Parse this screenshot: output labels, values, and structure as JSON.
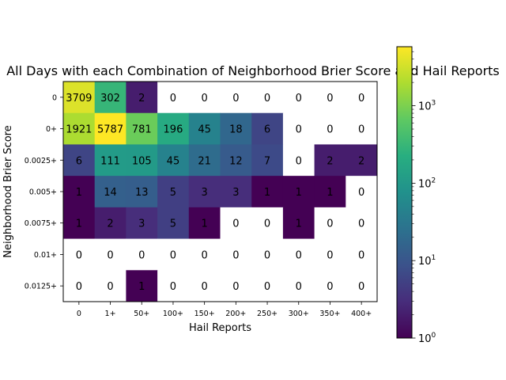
{
  "chart_data": {
    "type": "heatmap",
    "title": "All Days with each Combination of Neighborhood Brier Score and Hail Reports",
    "xlabel": "Hail Reports",
    "ylabel": "Neighborhood Brier Score",
    "x_categories": [
      "0",
      "1+",
      "50+",
      "100+",
      "150+",
      "200+",
      "250+",
      "300+",
      "350+",
      "400+"
    ],
    "y_categories": [
      "0",
      "0+",
      "0.0025+",
      "0.005+",
      "0.0075+",
      "0.01+",
      "0.0125+"
    ],
    "values": [
      [
        3709,
        302,
        2,
        0,
        0,
        0,
        0,
        0,
        0,
        0
      ],
      [
        1921,
        5787,
        781,
        196,
        45,
        18,
        6,
        0,
        0,
        0
      ],
      [
        6,
        111,
        105,
        45,
        21,
        12,
        7,
        0,
        2,
        2
      ],
      [
        1,
        14,
        13,
        5,
        3,
        3,
        1,
        1,
        1,
        0
      ],
      [
        1,
        2,
        3,
        5,
        1,
        0,
        0,
        1,
        0,
        0
      ],
      [
        0,
        0,
        0,
        0,
        0,
        0,
        0,
        0,
        0,
        0
      ],
      [
        0,
        0,
        1,
        0,
        0,
        0,
        0,
        0,
        0,
        0
      ]
    ],
    "colormap": "viridis",
    "color_scale": "log",
    "colorbar_range": [
      1,
      5787
    ],
    "colorbar_ticks": [
      {
        "value": 1,
        "base": "10",
        "exp": "0"
      },
      {
        "value": 10,
        "base": "10",
        "exp": "1"
      },
      {
        "value": 100,
        "base": "10",
        "exp": "2"
      },
      {
        "value": 1000,
        "base": "10",
        "exp": "3"
      }
    ],
    "zero_color": "#ffffff"
  }
}
